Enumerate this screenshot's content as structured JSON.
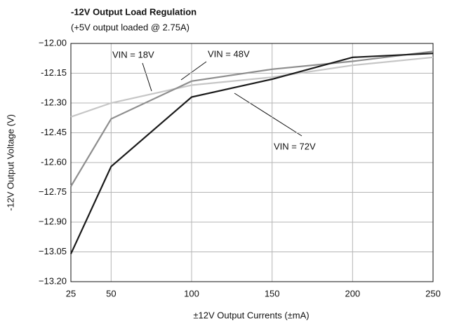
{
  "chart_data": {
    "type": "line",
    "title": "-12V Output Load Regulation",
    "subtitle": "(+5V output loaded @ 2.75A)",
    "x_label": "±12V Output Currents (±mA)",
    "y_label": "-12V Output Voltage (V)",
    "x": [
      25,
      50,
      100,
      150,
      200,
      250
    ],
    "series": [
      {
        "name": "VIN = 18V",
        "color": "#c6c6c6",
        "values": [
          -12.37,
          -12.3,
          -12.21,
          -12.17,
          -12.11,
          -12.07
        ]
      },
      {
        "name": "VIN = 48V",
        "color": "#8e8e8e",
        "values": [
          -12.72,
          -12.38,
          -12.19,
          -12.13,
          -12.09,
          -12.04
        ]
      },
      {
        "name": "VIN = 72V",
        "color": "#1a1a1a",
        "values": [
          -13.06,
          -12.62,
          -12.27,
          -12.18,
          -12.07,
          -12.05
        ]
      }
    ],
    "xlim": [
      25,
      250
    ],
    "xticks": [
      25,
      50,
      100,
      150,
      200,
      250
    ],
    "ylim": [
      -13.2,
      -12.0
    ],
    "yticks": [
      {
        "value": -12.0,
        "label": "−12.00"
      },
      {
        "value": -12.15,
        "label": "-12.15"
      },
      {
        "value": -12.3,
        "label": "-12.30"
      },
      {
        "value": -12.45,
        "label": "-12.45"
      },
      {
        "value": -12.6,
        "label": "-12.60"
      },
      {
        "value": -12.75,
        "label": "−12.75"
      },
      {
        "value": -12.9,
        "label": "−12.90"
      },
      {
        "value": -13.05,
        "label": "−13.05"
      },
      {
        "value": -13.2,
        "label": "−13.20"
      }
    ],
    "grid": true
  }
}
